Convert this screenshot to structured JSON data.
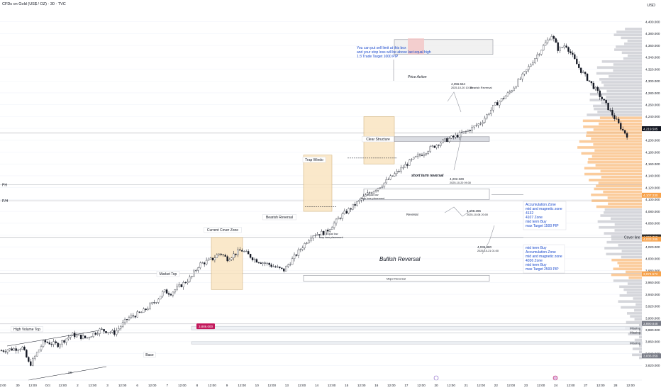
{
  "header": {
    "title": "CFDs on Gold (US$ / OZ) · 30 · TVC",
    "currency": "USD"
  },
  "colors": {
    "candle": "#131722",
    "zone_fill": "#f9e3bd",
    "zone_stroke": "#c8a363",
    "label_blue": "#1848cc",
    "price_badge": "#c2185b",
    "red_zone": "#f4c6c6",
    "vol_orange": "#f7a24b",
    "vol_grey": "#b2b5be"
  },
  "chart_data": {
    "type": "candlestick",
    "ylim": [
      3800,
      4420
    ],
    "y_ticks": [
      "4,400.000",
      "4,380.000",
      "4,360.000",
      "4,340.000",
      "4,320.000",
      "4,300.000",
      "4,280.000",
      "4,260.000",
      "4,240.000",
      "4,220.000",
      "4,200.000",
      "4,180.000",
      "4,160.000",
      "4,140.000",
      "4,120.000",
      "4,100.000",
      "4,080.000",
      "4,060.000",
      "4,040.000",
      "4,020.000",
      "4,000.000",
      "3,980.000",
      "3,960.000",
      "3,940.000",
      "3,920.000",
      "3,900.000",
      "3,880.000",
      "3,860.000",
      "3,840.000",
      "3,820.000"
    ],
    "x_ticks": [
      "2:00",
      "30",
      "12:00",
      "Oct",
      "12:00",
      "2",
      "12:00",
      "3",
      "12:00",
      "6",
      "12:00",
      "7",
      "12:00",
      "8",
      "12:00",
      "9",
      "12:00",
      "10",
      "12:00",
      "13",
      "12:00",
      "14",
      "12:00",
      "15",
      "12:00",
      "16",
      "12:00",
      "17",
      "12:00",
      "20",
      "12:00",
      "21",
      "12:00",
      "22",
      "12:00",
      "23",
      "12:00",
      "24",
      "12:00",
      "27",
      "12:00",
      "28",
      "12:00"
    ],
    "price_path": [
      [
        0,
        3845
      ],
      [
        1.5,
        3850
      ],
      [
        2,
        3820
      ],
      [
        3,
        3860
      ],
      [
        4,
        3855
      ],
      [
        5,
        3872
      ],
      [
        6,
        3866
      ],
      [
        7,
        3880
      ],
      [
        8,
        3875
      ],
      [
        9,
        3900
      ],
      [
        10,
        3910
      ],
      [
        11,
        3930
      ],
      [
        11.5,
        3945
      ],
      [
        12,
        3942
      ],
      [
        13,
        3960
      ],
      [
        13.5,
        3970
      ],
      [
        14,
        3990
      ],
      [
        15,
        4000
      ],
      [
        15.5,
        4010
      ],
      [
        16,
        4000
      ],
      [
        17,
        4015
      ],
      [
        18,
        3998
      ],
      [
        19,
        3990
      ],
      [
        20,
        3980
      ],
      [
        21,
        4010
      ],
      [
        22,
        4040
      ],
      [
        23,
        4045
      ],
      [
        24,
        4070
      ],
      [
        25,
        4090
      ],
      [
        26,
        4110
      ],
      [
        27,
        4125
      ],
      [
        28,
        4145
      ],
      [
        29,
        4165
      ],
      [
        30,
        4180
      ],
      [
        31,
        4195
      ],
      [
        32,
        4205
      ],
      [
        33,
        4215
      ],
      [
        34,
        4230
      ],
      [
        35,
        4260
      ],
      [
        36,
        4280
      ],
      [
        37,
        4310
      ],
      [
        38,
        4345
      ],
      [
        39,
        4378
      ],
      [
        39.5,
        4352
      ],
      [
        40,
        4362
      ],
      [
        41,
        4320
      ],
      [
        42,
        4290
      ],
      [
        43,
        4255
      ],
      [
        44,
        4218
      ],
      [
        44.5,
        4205
      ]
    ],
    "current_price_labels": [
      "4,219.505",
      "4,107.230",
      "4,036.795",
      "4,033.285",
      "3,974.572",
      "3,890.848",
      "3,836.059"
    ],
    "badge_price": "3,886.000",
    "left_axis_labels": [
      "PH",
      "P/H"
    ],
    "annotations": {
      "high_volume_top": "High Volume Top",
      "base": "Base",
      "market_top": "Market Top",
      "current_cover_zone": "Current Cover Zone",
      "bearish_reversal": "Bearish Reversal",
      "trap_window": "Trap Windo",
      "clear_structure": "Clear Structure",
      "price_action": "Price Action",
      "sell_note_1": "You can put sell limit at this box",
      "sell_note_2": "and your stop loss will be above last equal high",
      "sell_note_3": "1:3 Trade Target 1000 PIP",
      "bearish_box_price": "4,356.564",
      "bearish_box_date": "2025-10-20 10:30",
      "bearish_box_label": "Bearish Reversal",
      "short_term_reversal": "short term reversal",
      "str_price": "4,202.329",
      "str_date": "2025-10-20 09:30",
      "equal_low_1": "Equal low",
      "stop_loss_1": "Stop loss placement",
      "equal_low_2": "Equal low",
      "stop_loss_2": "stop loss placement",
      "reversal": "Reversal",
      "rev_price": "4,108.396",
      "rev_date": "2025-10-08 20:00",
      "accum_1": [
        "Accumulation Zone",
        "mid and magnetic zone",
        "4132",
        "4107 Zone",
        "mid term Buy",
        "max Target 1500 PIP"
      ],
      "bullish_reversal": "Bullish Reversal",
      "bull_price": "4,036.880",
      "bull_date": "2025-10-21 01:00",
      "accum_2": [
        "mid term Buy",
        "Accumulation Zone",
        "mid and magnetic zone",
        "4036  Zone",
        "mid term Buy",
        "max Target 2500 PIP"
      ],
      "cover_line": "Cover line",
      "major_reversal": "Major Reversal",
      "ss": "SS",
      "missing": "Missing"
    }
  }
}
